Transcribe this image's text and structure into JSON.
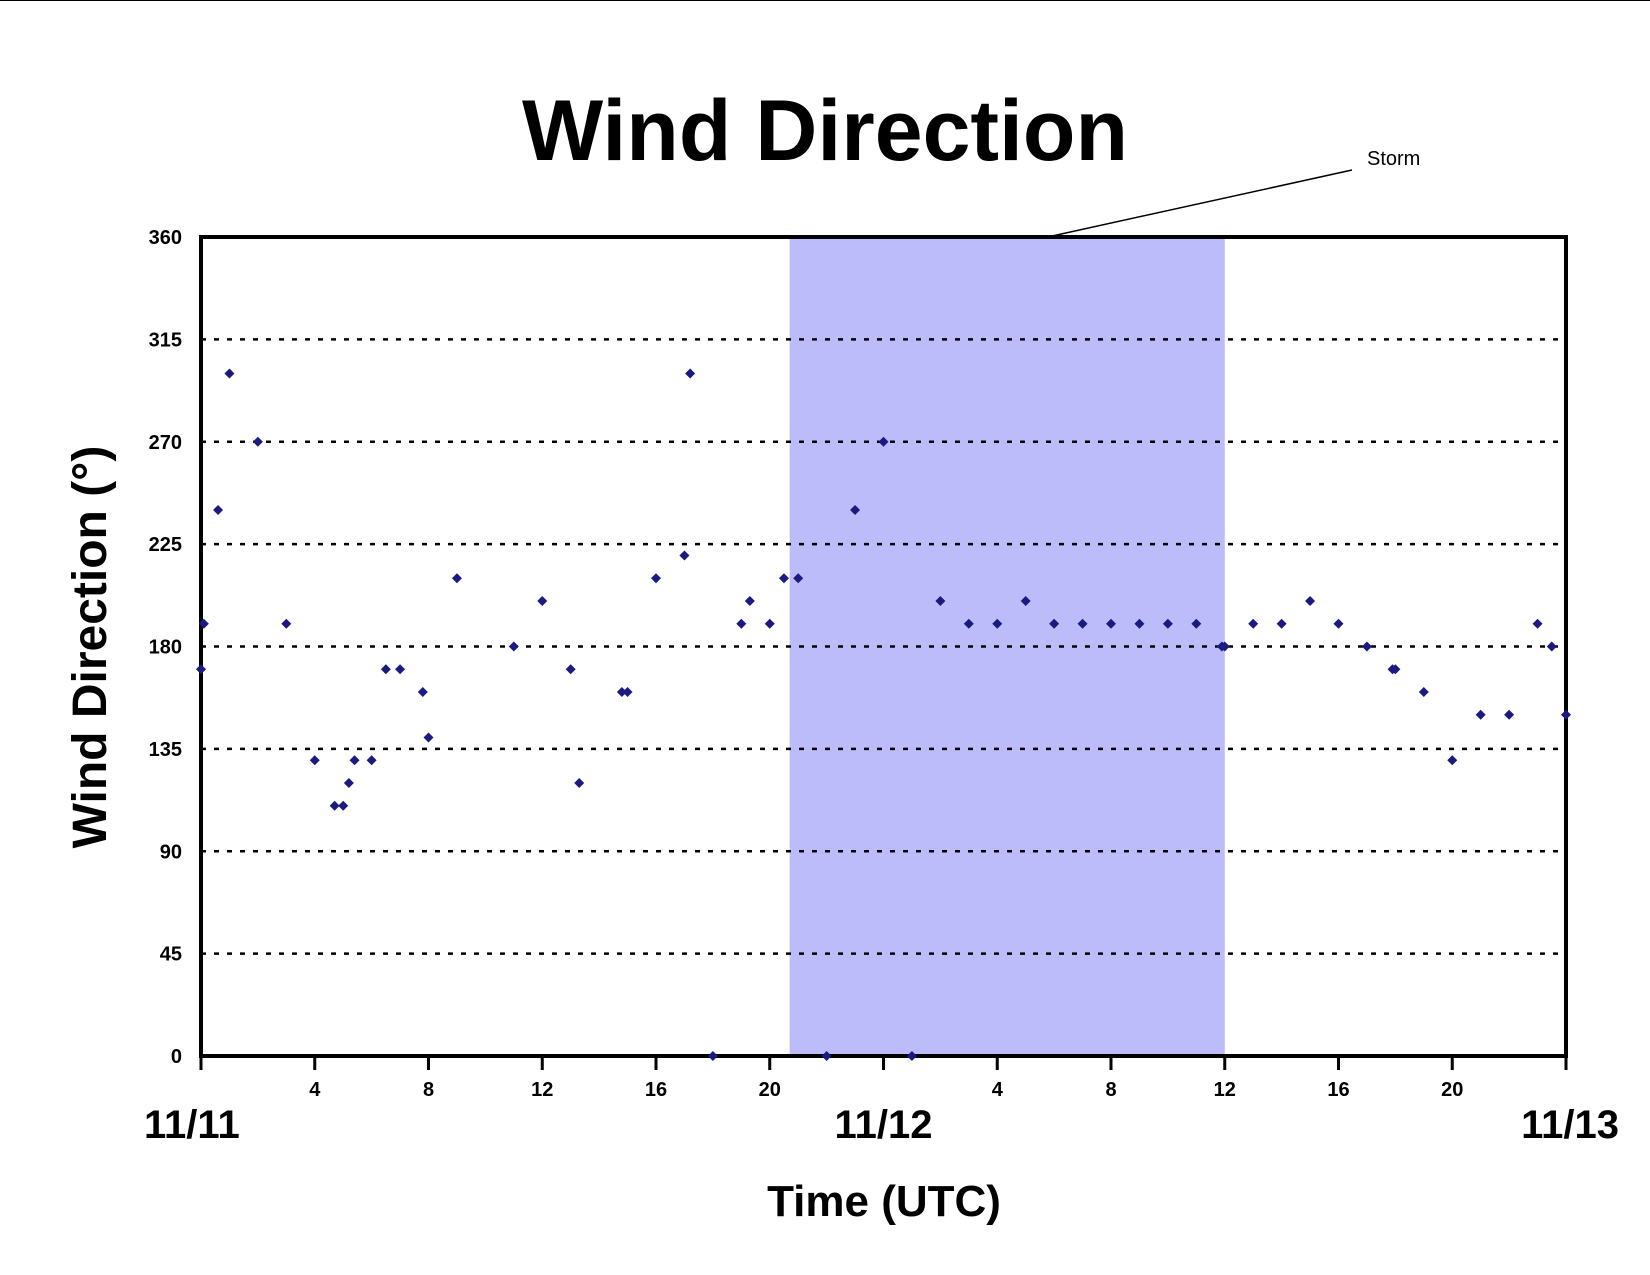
{
  "chart_data": {
    "type": "scatter",
    "title": "Wind Direction",
    "xlabel": "Time (UTC)",
    "ylabel": "Wind Direction (°)",
    "ylim": [
      0,
      360
    ],
    "yticks": [
      0,
      45,
      90,
      135,
      180,
      225,
      270,
      315,
      360
    ],
    "xlim": [
      0,
      48
    ],
    "x_unit": "hours since 11/11 00 UTC",
    "hour_ticks": [
      {
        "x": 4,
        "label": "4"
      },
      {
        "x": 8,
        "label": "8"
      },
      {
        "x": 12,
        "label": "12"
      },
      {
        "x": 16,
        "label": "16"
      },
      {
        "x": 20,
        "label": "20"
      },
      {
        "x": 28,
        "label": "4"
      },
      {
        "x": 32,
        "label": "8"
      },
      {
        "x": 36,
        "label": "12"
      },
      {
        "x": 40,
        "label": "16"
      },
      {
        "x": 44,
        "label": "20"
      }
    ],
    "day_labels": [
      {
        "x": 0,
        "label": "11/11"
      },
      {
        "x": 24,
        "label": "11/12"
      },
      {
        "x": 48,
        "label": "11/13"
      }
    ],
    "grid": "horizontal dotted",
    "colors": {
      "points": "#1a1a80",
      "storm_band": "#bcbcfa"
    },
    "annotation": {
      "text": "Storm",
      "x_start": 20.7,
      "x_end": 36.0
    },
    "points": [
      [
        0.0,
        170
      ],
      [
        0.1,
        190
      ],
      [
        0.6,
        240
      ],
      [
        1.0,
        300
      ],
      [
        2.0,
        270
      ],
      [
        3.0,
        190
      ],
      [
        4.0,
        130
      ],
      [
        4.7,
        110
      ],
      [
        5.0,
        110
      ],
      [
        5.2,
        120
      ],
      [
        5.4,
        130
      ],
      [
        6.0,
        130
      ],
      [
        6.5,
        170
      ],
      [
        7.0,
        170
      ],
      [
        7.8,
        160
      ],
      [
        8.0,
        140
      ],
      [
        9.0,
        210
      ],
      [
        11.0,
        180
      ],
      [
        12.0,
        200
      ],
      [
        13.0,
        170
      ],
      [
        13.3,
        120
      ],
      [
        14.8,
        160
      ],
      [
        15.0,
        160
      ],
      [
        16.0,
        210
      ],
      [
        17.0,
        220
      ],
      [
        17.2,
        300
      ],
      [
        18.0,
        0
      ],
      [
        19.0,
        190
      ],
      [
        19.3,
        200
      ],
      [
        20.0,
        190
      ],
      [
        20.5,
        210
      ],
      [
        21.0,
        210
      ],
      [
        22.0,
        0
      ],
      [
        23.0,
        240
      ],
      [
        24.0,
        270
      ],
      [
        25.0,
        0
      ],
      [
        26.0,
        200
      ],
      [
        27.0,
        190
      ],
      [
        28.0,
        190
      ],
      [
        29.0,
        200
      ],
      [
        30.0,
        190
      ],
      [
        31.0,
        190
      ],
      [
        32.0,
        190
      ],
      [
        33.0,
        190
      ],
      [
        34.0,
        190
      ],
      [
        35.0,
        190
      ],
      [
        35.9,
        180
      ],
      [
        36.0,
        180
      ],
      [
        37.0,
        190
      ],
      [
        38.0,
        190
      ],
      [
        39.0,
        200
      ],
      [
        40.0,
        190
      ],
      [
        41.0,
        180
      ],
      [
        41.9,
        170
      ],
      [
        42.0,
        170
      ],
      [
        43.0,
        160
      ],
      [
        44.0,
        130
      ],
      [
        45.0,
        150
      ],
      [
        46.0,
        150
      ],
      [
        47.0,
        190
      ],
      [
        47.5,
        180
      ],
      [
        48.0,
        150
      ]
    ]
  }
}
